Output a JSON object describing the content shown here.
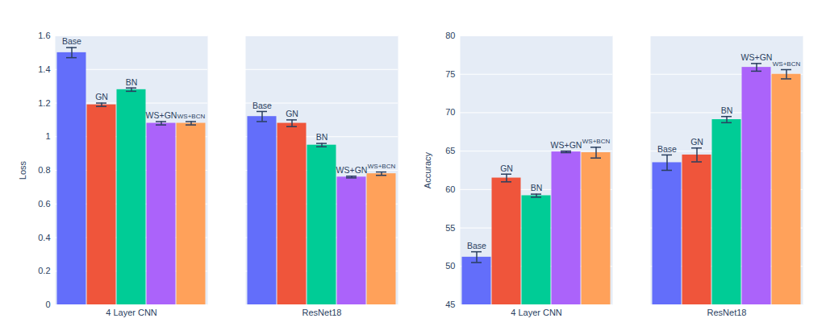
{
  "chart_data": [
    {
      "type": "bar",
      "ylabel": "Loss",
      "categories": [
        "4 Layer CNN",
        "ResNet18"
      ],
      "ylim": [
        0,
        1.6
      ],
      "yticks": [
        0,
        0.2,
        0.4,
        0.6,
        0.8,
        1,
        1.2,
        1.4,
        1.6
      ],
      "grid": true,
      "series": [
        {
          "name": "Base",
          "color": "#636efa",
          "values": [
            1.5,
            1.12
          ],
          "errors": [
            0.03,
            0.03
          ]
        },
        {
          "name": "GN",
          "color": "#ef553b",
          "values": [
            1.19,
            1.08
          ],
          "errors": [
            0.01,
            0.02
          ]
        },
        {
          "name": "BN",
          "color": "#00cc96",
          "values": [
            1.28,
            0.95
          ],
          "errors": [
            0.01,
            0.01
          ]
        },
        {
          "name": "WS+GN",
          "color": "#ab63fa",
          "values": [
            1.08,
            0.76
          ],
          "errors": [
            0.01,
            0.005
          ]
        },
        {
          "name": "WS+BCN",
          "color": "#ffa15a",
          "values": [
            1.08,
            0.78
          ],
          "errors": [
            0.01,
            0.01
          ]
        }
      ]
    },
    {
      "type": "bar",
      "ylabel": "Accuracy",
      "categories": [
        "4 Layer CNN",
        "ResNet18"
      ],
      "ylim": [
        45,
        80
      ],
      "yticks": [
        45,
        50,
        55,
        60,
        65,
        70,
        75,
        80
      ],
      "grid": true,
      "series": [
        {
          "name": "Base",
          "color": "#636efa",
          "values": [
            51.2,
            63.5
          ],
          "errors": [
            0.7,
            1.0
          ]
        },
        {
          "name": "GN",
          "color": "#ef553b",
          "values": [
            61.5,
            64.5
          ],
          "errors": [
            0.5,
            0.9
          ]
        },
        {
          "name": "BN",
          "color": "#00cc96",
          "values": [
            59.2,
            69.1
          ],
          "errors": [
            0.2,
            0.4
          ]
        },
        {
          "name": "WS+GN",
          "color": "#ab63fa",
          "values": [
            64.9,
            75.9
          ],
          "errors": [
            0.1,
            0.5
          ]
        },
        {
          "name": "WS+BCN",
          "color": "#ffa15a",
          "values": [
            64.8,
            75.0
          ],
          "errors": [
            0.7,
            0.6
          ]
        }
      ]
    }
  ]
}
